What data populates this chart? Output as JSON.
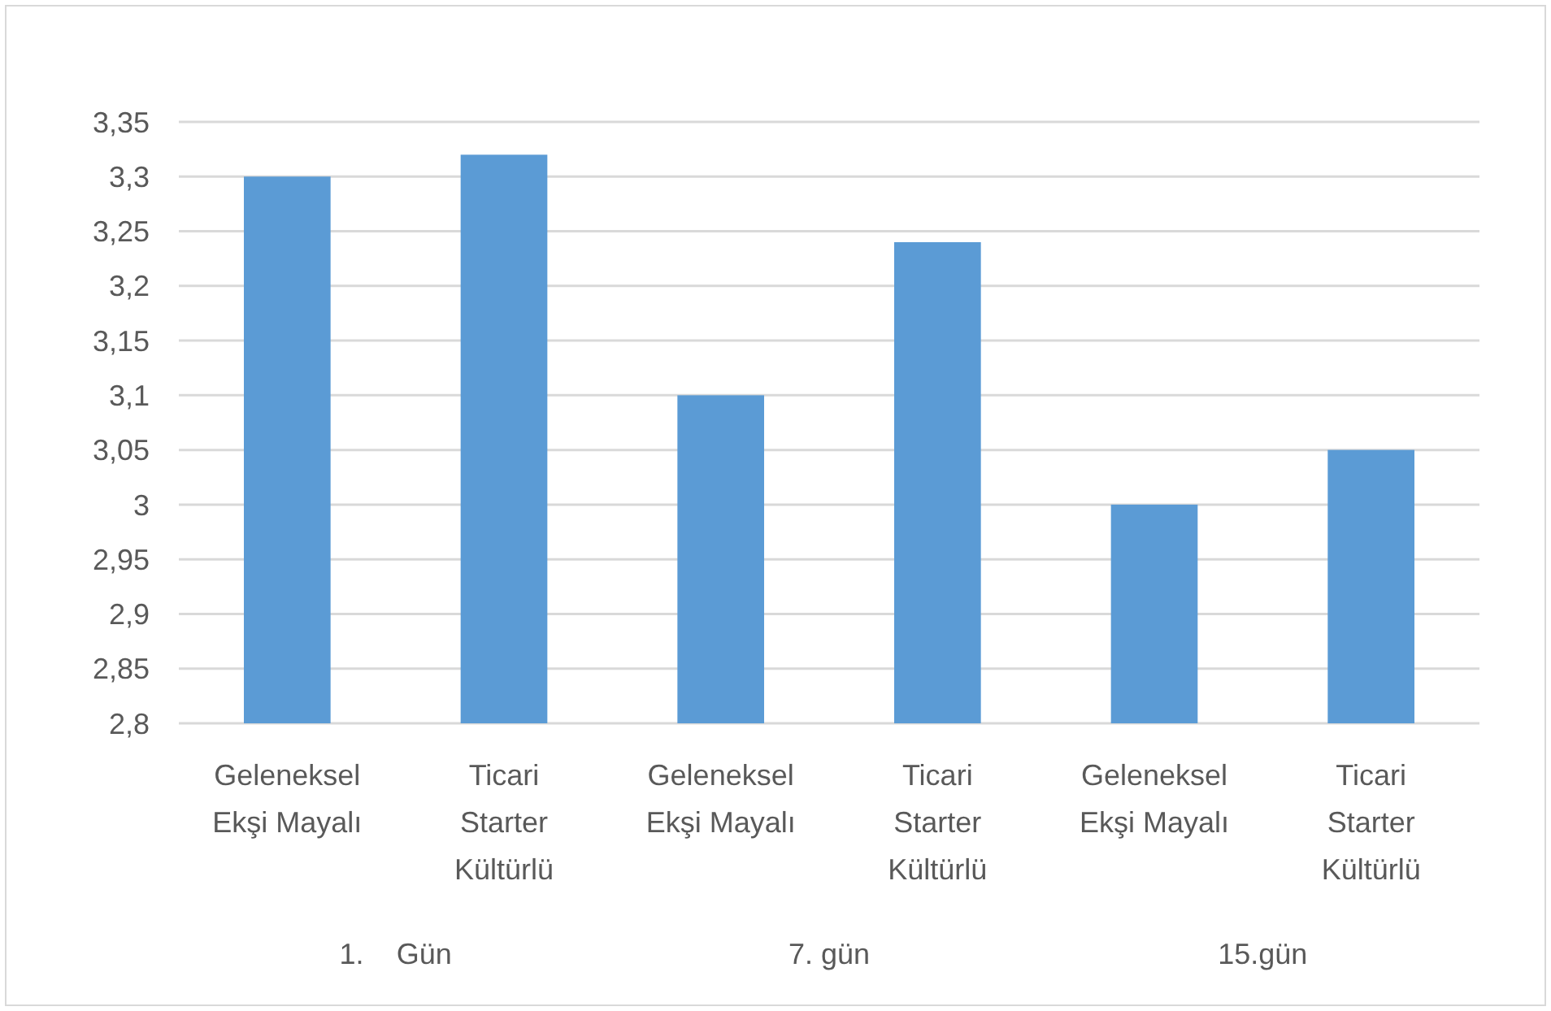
{
  "chart_data": {
    "type": "bar",
    "categories": [
      "Geleneksel Ekşi Mayalı",
      "Ticari Starter Kültürlü",
      "Geleneksel Ekşi Mayalı",
      "Ticari Starter Kültürlü",
      "Geleneksel Ekşi Mayalı",
      "Ticari Starter Kültürlü"
    ],
    "values": [
      3.3,
      3.32,
      3.1,
      3.24,
      3.0,
      3.05
    ],
    "color": "#5b9bd5",
    "ylim": [
      2.8,
      3.35
    ],
    "yticks": [
      {
        "value": 2.8,
        "label": "2,8"
      },
      {
        "value": 2.85,
        "label": "2,85"
      },
      {
        "value": 2.9,
        "label": "2,9"
      },
      {
        "value": 2.95,
        "label": "2,95"
      },
      {
        "value": 3.0,
        "label": "3"
      },
      {
        "value": 3.05,
        "label": "3,05"
      },
      {
        "value": 3.1,
        "label": "3,1"
      },
      {
        "value": 3.15,
        "label": "3,15"
      },
      {
        "value": 3.2,
        "label": "3,2"
      },
      {
        "value": 3.25,
        "label": "3,25"
      },
      {
        "value": 3.3,
        "label": "3,3"
      },
      {
        "value": 3.35,
        "label": "3,35"
      }
    ],
    "grid": "y",
    "annotations": [
      "1.    Gün",
      "7. gün",
      "15.gün"
    ]
  }
}
